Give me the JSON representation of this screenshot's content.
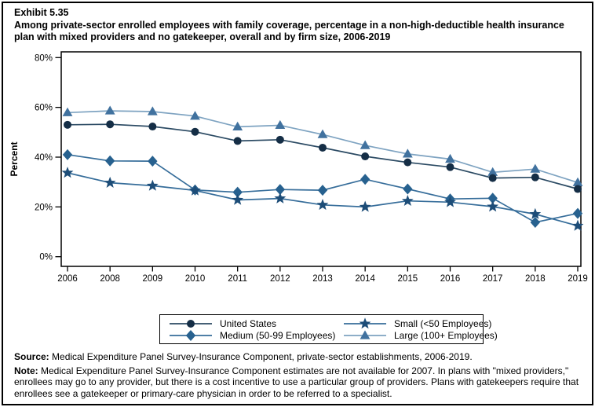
{
  "header": {
    "exhibit": "Exhibit 5.35",
    "title": "Among private-sector enrolled employees with family coverage, percentage in a non-high-deductible health insurance plan with mixed providers and no gatekeeper, overall and by firm size, 2006-2019"
  },
  "chart_data": {
    "type": "line",
    "title": "Exhibit 5.35. Among private-sector enrolled employees with family coverage, percentage in a non-high-deductible health insurance plan with mixed providers and no gatekeeper, overall and by firm size, 2006-2019",
    "xlabel": "",
    "ylabel": "Percent",
    "ylim": [
      0,
      80
    ],
    "yticks": [
      0,
      20,
      40,
      60,
      80
    ],
    "ytick_suffix": "%",
    "grid": false,
    "legend_position": "bottom",
    "note": "2007 estimates not available",
    "categories": [
      "2006",
      "2008",
      "2009",
      "2010",
      "2011",
      "2012",
      "2013",
      "2014",
      "2015",
      "2016",
      "2017",
      "2018",
      "2019"
    ],
    "series": [
      {
        "name": "Large (100+ Employees)",
        "marker": "triangle",
        "marker_color": "#41729f",
        "line_color": "#7ea3c1",
        "values": [
          57.9,
          58.6,
          58.3,
          56.5,
          52.2,
          52.8,
          49.1,
          44.7,
          41.3,
          39.2,
          33.9,
          35.2,
          29.8
        ]
      },
      {
        "name": "United States",
        "marker": "circle",
        "marker_color": "#152e46",
        "line_color": "#2b4a63",
        "values": [
          53.0,
          53.2,
          52.3,
          50.2,
          46.5,
          47.0,
          43.8,
          40.3,
          37.9,
          36.0,
          31.6,
          31.9,
          27.2
        ]
      },
      {
        "name": "Medium (50-99 Employees)",
        "marker": "diamond",
        "marker_color": "#27618f",
        "line_color": "#366d9a",
        "values": [
          41.0,
          38.5,
          38.4,
          26.8,
          25.9,
          27.0,
          26.7,
          31.1,
          27.2,
          23.2,
          23.5,
          13.8,
          17.4
        ]
      },
      {
        "name": "Small (<50 Employees)",
        "marker": "star",
        "marker_color": "#1d4d78",
        "line_color": "#366d9a",
        "values": [
          33.7,
          29.7,
          28.5,
          26.6,
          22.8,
          23.4,
          20.8,
          20.0,
          22.4,
          21.9,
          20.1,
          17.1,
          12.4
        ]
      }
    ]
  },
  "legend": {
    "items": [
      {
        "label": "United States",
        "series": "United States"
      },
      {
        "label": "Small (<50 Employees)",
        "series": "Small (<50 Employees)"
      },
      {
        "label": "Medium (50-99 Employees)",
        "series": "Medium (50-99 Employees)"
      },
      {
        "label": "Large (100+ Employees)",
        "series": "Large (100+ Employees)"
      }
    ]
  },
  "footer": {
    "source_label": "Source:",
    "source_text": "Medical Expenditure Panel Survey-Insurance Component, private-sector establishments, 2006-2019.",
    "note_label": "Note:",
    "note_text": "Medical Expenditure Panel Survey-Insurance Component estimates are not available for 2007. In plans with \"mixed providers,\" enrollees may go to any provider, but there is a cost incentive to use a particular group of providers. Plans with gatekeepers require that enrollees see a gatekeeper or primary-care physician in order to be referred to a specialist."
  }
}
